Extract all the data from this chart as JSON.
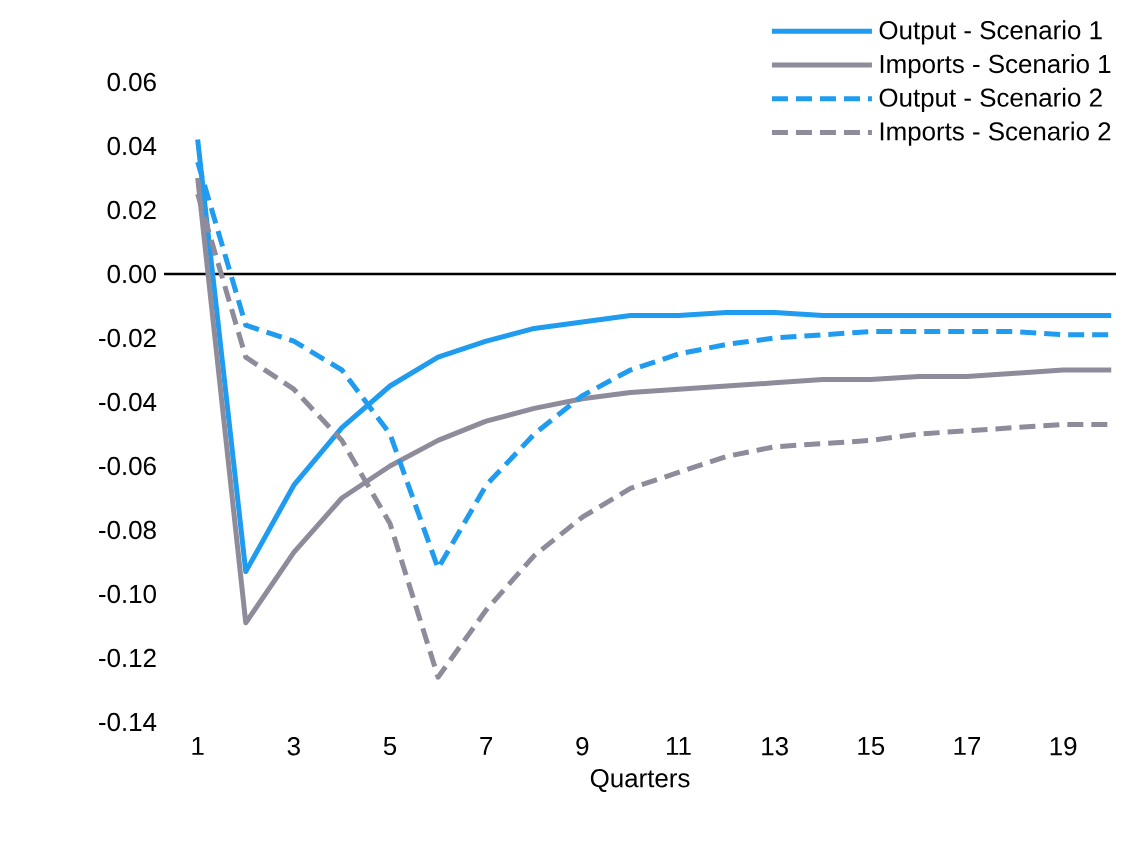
{
  "chart_data": {
    "type": "line",
    "xlabel": "Quarters",
    "x": [
      1,
      2,
      3,
      4,
      5,
      6,
      7,
      8,
      9,
      10,
      11,
      12,
      13,
      14,
      15,
      16,
      17,
      18,
      19,
      20
    ],
    "series": [
      {
        "name": "Output - Scenario 1",
        "color": "#1f9cf0",
        "line_style": "solid",
        "values": [
          0.042,
          -0.093,
          -0.066,
          -0.048,
          -0.035,
          -0.026,
          -0.021,
          -0.017,
          -0.015,
          -0.013,
          -0.013,
          -0.012,
          -0.012,
          -0.013,
          -0.013,
          -0.013,
          -0.013,
          -0.013,
          -0.013,
          -0.013
        ]
      },
      {
        "name": "Imports - Scenario 1",
        "color": "#8e8b9a",
        "line_style": "solid",
        "values": [
          0.03,
          -0.109,
          -0.087,
          -0.07,
          -0.06,
          -0.052,
          -0.046,
          -0.042,
          -0.039,
          -0.037,
          -0.036,
          -0.035,
          -0.034,
          -0.033,
          -0.033,
          -0.032,
          -0.032,
          -0.031,
          -0.03,
          -0.03
        ]
      },
      {
        "name": "Output - Scenario 2",
        "color": "#1f9cf0",
        "line_style": "dashed",
        "values": [
          0.035,
          -0.016,
          -0.021,
          -0.03,
          -0.05,
          -0.092,
          -0.066,
          -0.05,
          -0.038,
          -0.03,
          -0.025,
          -0.022,
          -0.02,
          -0.019,
          -0.018,
          -0.018,
          -0.018,
          -0.018,
          -0.019,
          -0.019
        ]
      },
      {
        "name": "Imports - Scenario 2",
        "color": "#8e8b9a",
        "line_style": "dashed",
        "values": [
          0.025,
          -0.026,
          -0.036,
          -0.052,
          -0.078,
          -0.126,
          -0.105,
          -0.088,
          -0.076,
          -0.067,
          -0.062,
          -0.057,
          -0.054,
          -0.053,
          -0.052,
          -0.05,
          -0.049,
          -0.048,
          -0.047,
          -0.047
        ]
      }
    ],
    "xlim": [
      0.3,
      20.1
    ],
    "xticks": [
      1,
      3,
      5,
      7,
      9,
      11,
      13,
      15,
      17,
      19
    ],
    "ylim": [
      -0.14,
      0.06
    ],
    "yticks": [
      {
        "value": 0.06,
        "label": "0.06"
      },
      {
        "value": 0.04,
        "label": "0.04"
      },
      {
        "value": 0.02,
        "label": "0.02"
      },
      {
        "value": 0,
        "label": "0.00"
      },
      {
        "value": -0.02,
        "label": "-0.02"
      },
      {
        "value": -0.04,
        "label": "-0.04"
      },
      {
        "value": -0.06,
        "label": "-0.06"
      },
      {
        "value": -0.08,
        "label": "-0.08"
      },
      {
        "value": -0.1,
        "label": "-0.10"
      },
      {
        "value": -0.12,
        "label": "-0.12"
      },
      {
        "value": -0.14,
        "label": "-0.14"
      }
    ],
    "ref_lines": [
      {
        "axis": "y",
        "value": 0,
        "color": "#000000"
      }
    ],
    "grid": false,
    "legend": "top right",
    "marker": "none"
  }
}
